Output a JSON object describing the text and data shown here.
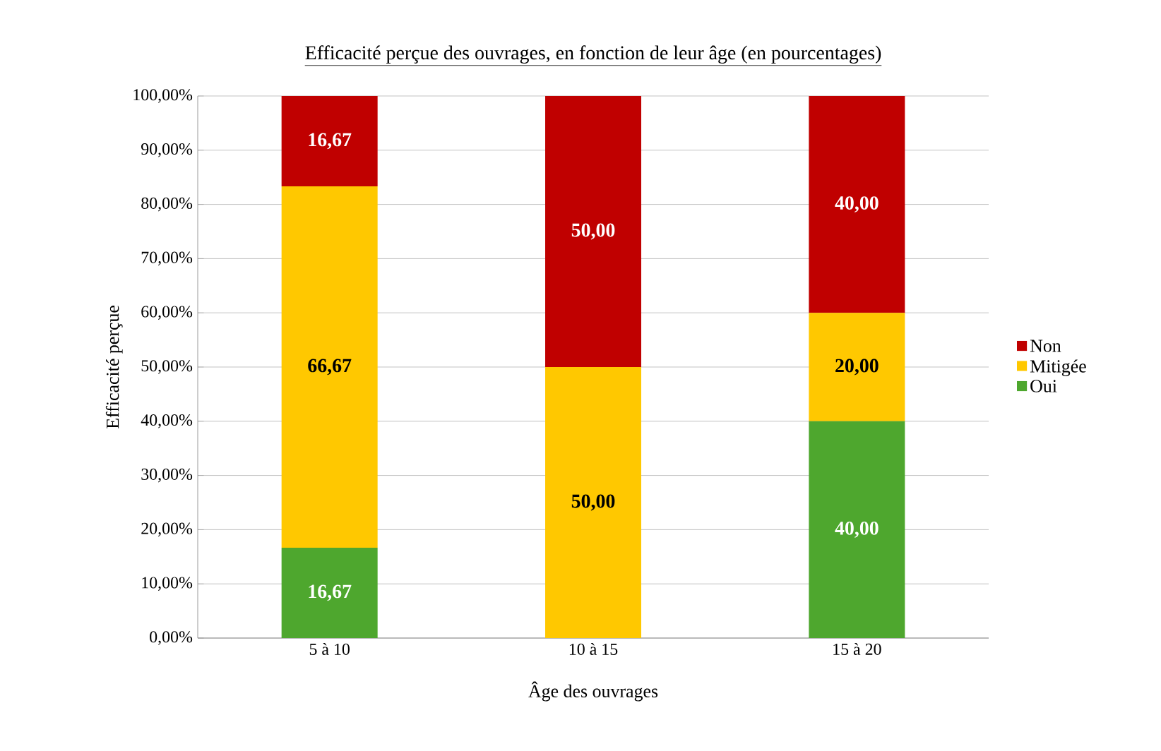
{
  "chart_data": {
    "type": "bar",
    "stacked": true,
    "title": "Efficacité perçue des ouvrages, en fonction de leur âge (en pourcentages)",
    "xlabel": "Âge des ouvrages",
    "ylabel": "Efficacité perçue",
    "categories": [
      "5 à 10",
      "10 à 15",
      "15 à 20"
    ],
    "series": [
      {
        "name": "Oui",
        "color": "#4ea72e",
        "values": [
          16.67,
          0,
          40
        ],
        "value_labels": [
          "16,67",
          null,
          "40,00"
        ]
      },
      {
        "name": "Mitigée",
        "color": "#ffc800",
        "values": [
          66.67,
          50,
          20
        ],
        "value_labels": [
          "66,67",
          "50,00",
          "20,00"
        ]
      },
      {
        "name": "Non",
        "color": "#c00000",
        "values": [
          16.67,
          50,
          40
        ],
        "value_labels": [
          "16,67",
          "50,00",
          "40,00"
        ]
      }
    ],
    "ylim": [
      0,
      100
    ],
    "yticks": [
      {
        "value": 0,
        "label": "0,00%"
      },
      {
        "value": 10,
        "label": "10,00%"
      },
      {
        "value": 20,
        "label": "20,00%"
      },
      {
        "value": 30,
        "label": "30,00%"
      },
      {
        "value": 40,
        "label": "40,00%"
      },
      {
        "value": 50,
        "label": "50,00%"
      },
      {
        "value": 60,
        "label": "60,00%"
      },
      {
        "value": 70,
        "label": "70,00%"
      },
      {
        "value": 80,
        "label": "80,00%"
      },
      {
        "value": 90,
        "label": "90,00%"
      },
      {
        "value": 100,
        "label": "100,00%"
      }
    ],
    "grid": "y",
    "legend": "right"
  }
}
